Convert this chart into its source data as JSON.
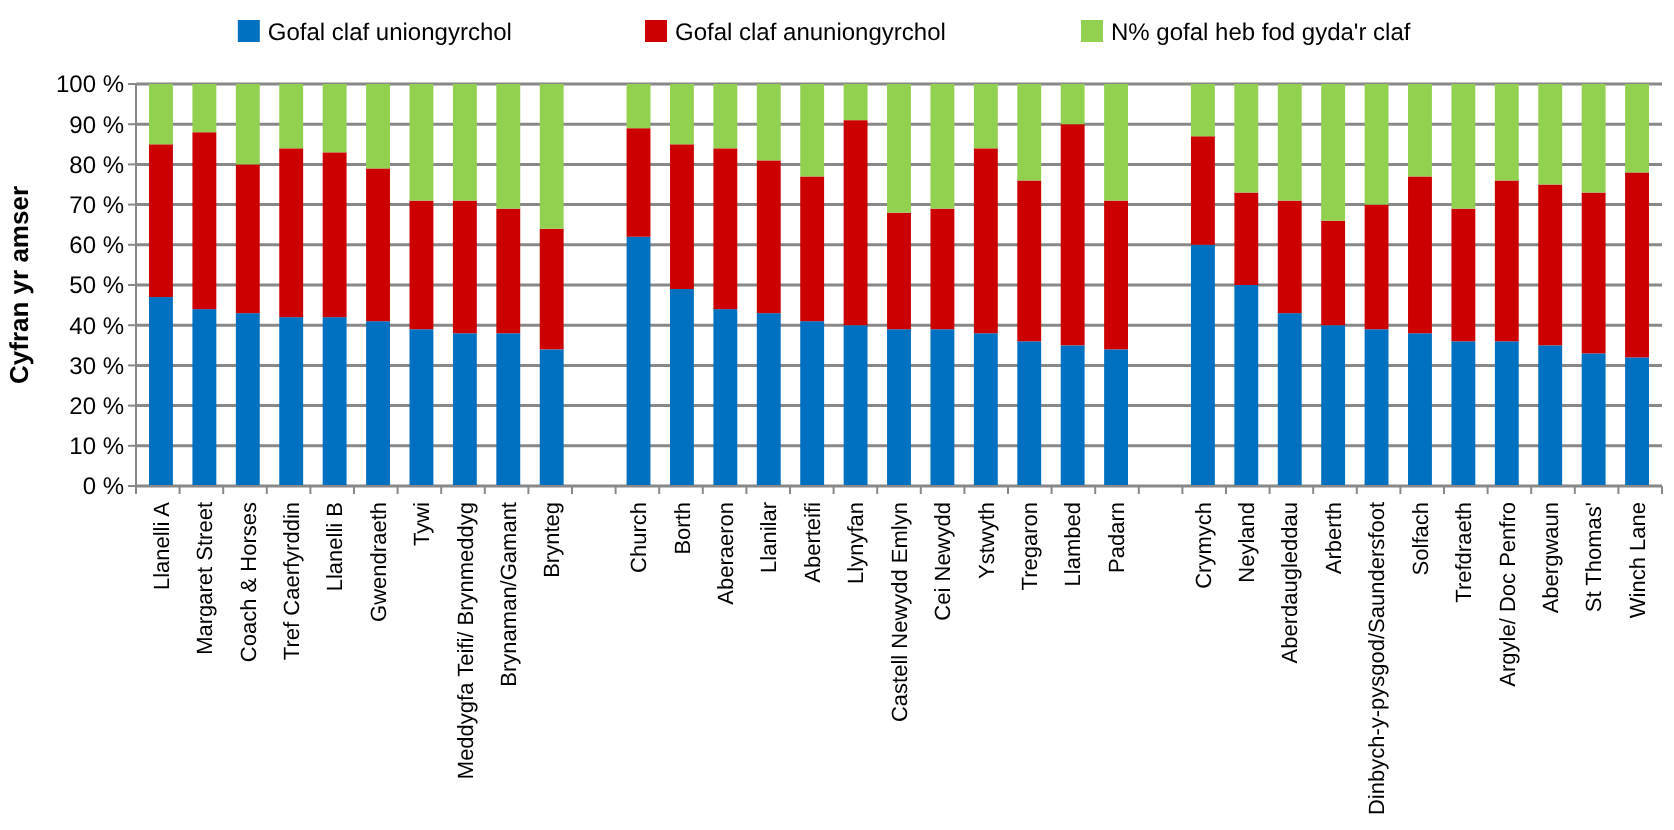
{
  "chart_data": {
    "type": "bar",
    "stacked": true,
    "ylabel": "Cyfran yr amser",
    "legend": "top",
    "grid": "y",
    "categories": [
      "Llanelli A",
      "Margaret Street",
      "Coach & Horses",
      "Tref Caerfyrddin",
      "Llanelli B",
      "Gwendraeth",
      "Tywi",
      "Meddygfa Teifi/ Brynmeddyg",
      "Brynaman/Gamant",
      "Brynteg",
      null,
      "Church",
      "Borth",
      "Aberaeron",
      "Llanilar",
      "Aberteifi",
      "Llynyfan",
      "Castell Newydd Emlyn",
      "Cei Newydd",
      "Ystwyth",
      "Tregaron",
      "Llambed",
      "Padarn",
      null,
      "Crymych",
      "Neyland",
      "Aberdaugleddau",
      "Arberth",
      "Dinbych-y-pysgod/Saundersfoot",
      "Solfach",
      "Trefdraeth",
      "Argyle/ Doc Penfro",
      "Abergwaun",
      "St Thomas'",
      "Winch Lane"
    ],
    "ylim": [
      0,
      100
    ],
    "yticks": [
      {
        "value": 0,
        "label": "0 %"
      },
      {
        "value": 10,
        "label": "10 %"
      },
      {
        "value": 20,
        "label": "20 %"
      },
      {
        "value": 30,
        "label": "30 %"
      },
      {
        "value": 40,
        "label": "40 %"
      },
      {
        "value": 50,
        "label": "50 %"
      },
      {
        "value": 60,
        "label": "60 %"
      },
      {
        "value": 70,
        "label": "70 %"
      },
      {
        "value": 80,
        "label": "80 %"
      },
      {
        "value": 90,
        "label": "90 %"
      },
      {
        "value": 100,
        "label": "100 %"
      }
    ],
    "series": [
      {
        "name": "Gofal claf uniongyrchol",
        "color": "#0070c0",
        "values": [
          47,
          44,
          43,
          42,
          42,
          41,
          39,
          38,
          38,
          34,
          null,
          62,
          49,
          44,
          43,
          41,
          40,
          39,
          39,
          38,
          36,
          35,
          34,
          null,
          60,
          50,
          43,
          40,
          39,
          38,
          36,
          36,
          35,
          33,
          32
        ]
      },
      {
        "name": "Gofal claf anuniongyrchol",
        "color": "#cc0000",
        "values": [
          38,
          44,
          37,
          42,
          41,
          38,
          32,
          33,
          31,
          30,
          null,
          27,
          36,
          40,
          38,
          36,
          51,
          29,
          30,
          46,
          40,
          55,
          37,
          null,
          27,
          23,
          28,
          26,
          31,
          39,
          33,
          40,
          40,
          40,
          46
        ]
      },
      {
        "name": "N% gofal heb fod gyda'r claf",
        "color": "#92d050",
        "values": [
          15,
          12,
          20,
          16,
          17,
          21,
          29,
          29,
          31,
          36,
          null,
          11,
          15,
          16,
          19,
          23,
          9,
          32,
          31,
          16,
          24,
          10,
          29,
          null,
          13,
          27,
          29,
          34,
          30,
          23,
          31,
          24,
          25,
          27,
          22
        ]
      }
    ]
  }
}
